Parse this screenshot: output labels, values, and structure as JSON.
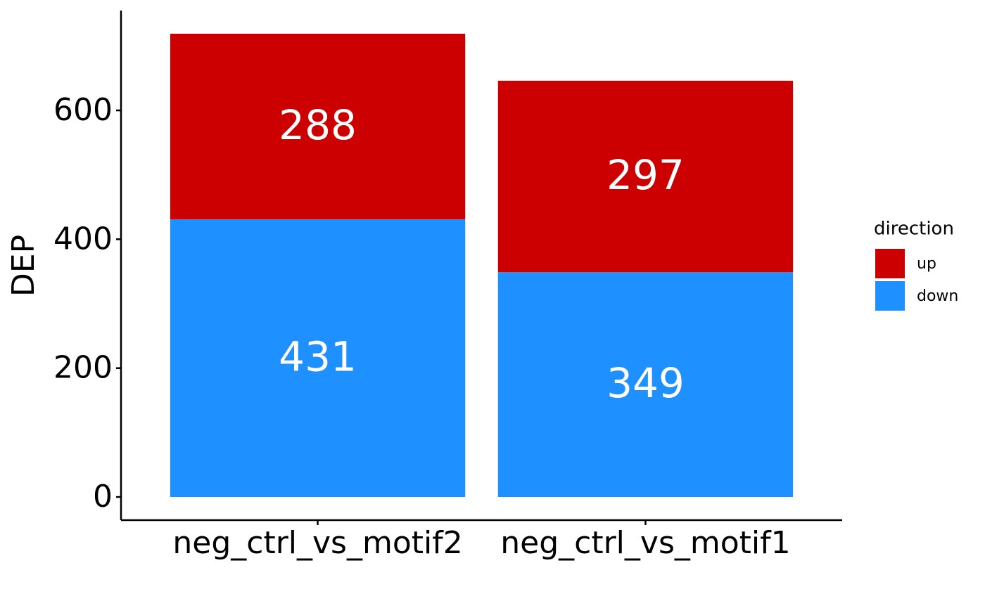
{
  "chart_data": {
    "type": "stacked_bar",
    "y_label": "DEP",
    "categories": [
      "neg_ctrl_vs_motif2",
      "neg_ctrl_vs_motif1"
    ],
    "series": [
      {
        "name": "up",
        "color": "#cc0000",
        "values": [
          288,
          297
        ]
      },
      {
        "name": "down",
        "color": "#1e90ff",
        "values": [
          431,
          349
        ]
      }
    ],
    "ylim": [
      -35.95,
      754.95
    ],
    "yticks": [
      0,
      200,
      400,
      600
    ],
    "legend_title": "direction",
    "legend_position": "right",
    "grid": false
  }
}
